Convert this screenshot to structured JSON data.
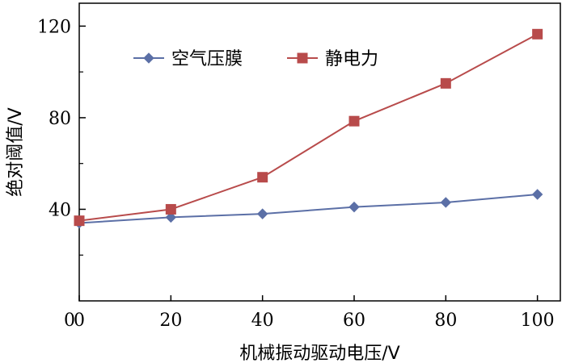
{
  "chart_data": {
    "type": "line",
    "xlabel": "机械振动驱动电压/V",
    "ylabel": "绝对阈值/V",
    "xlim": [
      0,
      105
    ],
    "ylim": [
      0,
      130
    ],
    "xticks": [
      0,
      20,
      40,
      60,
      80,
      100
    ],
    "yticks": [
      40,
      80,
      120
    ],
    "yminor_ticks": [
      20,
      60,
      100
    ],
    "grid": false,
    "legend_position": "top-left",
    "series": [
      {
        "name": "空气压膜",
        "color": "#5b6fa6",
        "marker": "diamond",
        "x": [
          0,
          20,
          40,
          60,
          80,
          100
        ],
        "y": [
          34,
          36.5,
          38,
          41,
          43,
          46.5
        ]
      },
      {
        "name": "静电力",
        "color": "#b84b4b",
        "marker": "square",
        "x": [
          0,
          20,
          40,
          60,
          80,
          100
        ],
        "y": [
          35,
          40,
          54,
          78.5,
          95,
          116.5
        ]
      }
    ]
  }
}
